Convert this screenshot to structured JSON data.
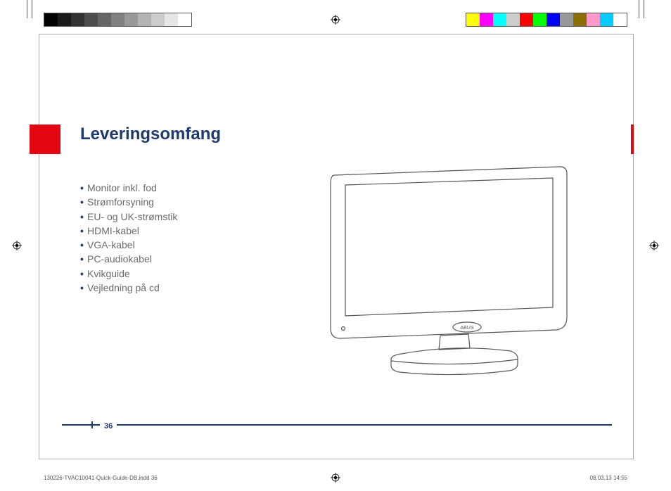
{
  "colors": {
    "heading": "#1e3a6e",
    "text": "#6b6b6b",
    "red": "#e30613"
  },
  "calibration": {
    "grayscale": [
      "#000000",
      "#1a1a1a",
      "#333333",
      "#4d4d4d",
      "#666666",
      "#808080",
      "#999999",
      "#b3b3b3",
      "#cccccc",
      "#e6e6e6",
      "#ffffff"
    ],
    "color": [
      "#ffff00",
      "#ff00ff",
      "#00ffff",
      "#cccccc",
      "#ff0000",
      "#00ff00",
      "#0000ff",
      "#999999",
      "#8b6f00",
      "#ff99cc",
      "#00ccff",
      "#ffffff"
    ]
  },
  "heading": "Leveringsomfang",
  "list": [
    "Monitor inkl. fod",
    "Strømforsyning",
    "EU- og UK-strømstik",
    "HDMI-kabel",
    "VGA-kabel",
    "PC-audiokabel",
    "Kvikguide",
    "Vejledning på cd"
  ],
  "monitor_label": "ABUS",
  "page_number": "36",
  "slug": {
    "file": "130226-TVAC10041-Quick-Guide-DB.indd   36",
    "datetime": "08.03.13   14:55"
  }
}
